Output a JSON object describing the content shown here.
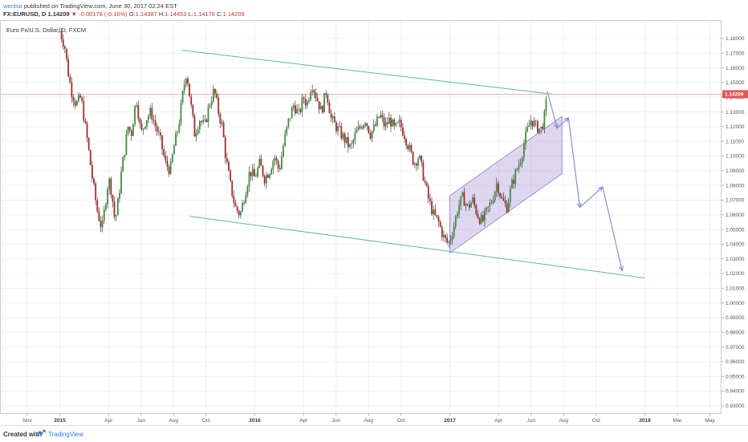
{
  "header": {
    "author": "wentso",
    "published_text": "published on TradingView.com, June 30, 2017 02:24 EST",
    "symbol": "FX:EURUSD, D",
    "last": "1.14209",
    "change": "-0.00178 (-0.16%)",
    "o_label": "O:",
    "o_value": "1.14387",
    "h_label": "H:",
    "h_value": "1.14453",
    "l_label": "L:",
    "l_value": "1.14176",
    "c_label": "C:",
    "c_value": "1.14209"
  },
  "footer": {
    "created_with": "Created with",
    "brand": "TradingView"
  },
  "chart_data": {
    "type": "candlestick",
    "title": "Euro Fx/U.S. Dollar, D, FXCM",
    "ylim": [
      0.925,
      1.192
    ],
    "y_ticks": [
      "1.18000",
      "1.17000",
      "1.16000",
      "1.15000",
      "1.14000",
      "1.13000",
      "1.12000",
      "1.11000",
      "1.10000",
      "1.09000",
      "1.08000",
      "1.07000",
      "1.06000",
      "1.05000",
      "1.04000",
      "1.03000",
      "1.02000",
      "1.01000",
      "1.00000",
      "0.99000",
      "0.98000",
      "0.97000",
      "0.96000",
      "0.95000",
      "0.94000",
      "0.93000"
    ],
    "current_price": "1.14209",
    "x_labels": [
      {
        "label": "Nov",
        "t": 0.0,
        "bold": false
      },
      {
        "label": "2015",
        "t": 2.0,
        "bold": true
      },
      {
        "label": "Apr",
        "t": 5.0,
        "bold": false
      },
      {
        "label": "Jun",
        "t": 7.0,
        "bold": false
      },
      {
        "label": "Aug",
        "t": 9.0,
        "bold": false
      },
      {
        "label": "Oct",
        "t": 11.0,
        "bold": false
      },
      {
        "label": "2016",
        "t": 14.0,
        "bold": true
      },
      {
        "label": "Apr",
        "t": 17.0,
        "bold": false
      },
      {
        "label": "Jun",
        "t": 19.0,
        "bold": false
      },
      {
        "label": "Aug",
        "t": 21.0,
        "bold": false
      },
      {
        "label": "Oct",
        "t": 23.0,
        "bold": false
      },
      {
        "label": "2017",
        "t": 26.0,
        "bold": true
      },
      {
        "label": "Apr",
        "t": 29.0,
        "bold": false
      },
      {
        "label": "Jun",
        "t": 31.0,
        "bold": false
      },
      {
        "label": "Aug",
        "t": 33.0,
        "bold": false
      },
      {
        "label": "Oct",
        "t": 35.0,
        "bold": false
      },
      {
        "label": "2018",
        "t": 38.0,
        "bold": true
      },
      {
        "label": "Mar",
        "t": 40.0,
        "bold": false
      },
      {
        "label": "May",
        "t": 42.0,
        "bold": false
      }
    ],
    "price_path": [
      [
        2.0,
        1.185
      ],
      [
        2.3,
        1.175
      ],
      [
        2.5,
        1.158
      ],
      [
        2.7,
        1.145
      ],
      [
        3.0,
        1.135
      ],
      [
        3.3,
        1.14
      ],
      [
        3.5,
        1.125
      ],
      [
        3.7,
        1.11
      ],
      [
        4.0,
        1.085
      ],
      [
        4.3,
        1.063
      ],
      [
        4.6,
        1.05
      ],
      [
        4.8,
        1.068
      ],
      [
        5.0,
        1.085
      ],
      [
        5.2,
        1.075
      ],
      [
        5.4,
        1.055
      ],
      [
        5.6,
        1.07
      ],
      [
        5.8,
        1.09
      ],
      [
        6.0,
        1.105
      ],
      [
        6.2,
        1.12
      ],
      [
        6.4,
        1.115
      ],
      [
        6.7,
        1.14
      ],
      [
        7.0,
        1.115
      ],
      [
        7.3,
        1.125
      ],
      [
        7.6,
        1.13
      ],
      [
        7.9,
        1.12
      ],
      [
        8.2,
        1.11
      ],
      [
        8.5,
        1.095
      ],
      [
        8.8,
        1.09
      ],
      [
        9.0,
        1.105
      ],
      [
        9.3,
        1.12
      ],
      [
        9.6,
        1.145
      ],
      [
        9.8,
        1.158
      ],
      [
        10.0,
        1.14
      ],
      [
        10.3,
        1.115
      ],
      [
        10.6,
        1.125
      ],
      [
        10.9,
        1.12
      ],
      [
        11.2,
        1.135
      ],
      [
        11.5,
        1.145
      ],
      [
        11.8,
        1.128
      ],
      [
        12.0,
        1.12
      ],
      [
        12.2,
        1.1
      ],
      [
        12.5,
        1.08
      ],
      [
        12.8,
        1.065
      ],
      [
        13.1,
        1.06
      ],
      [
        13.4,
        1.075
      ],
      [
        13.7,
        1.09
      ],
      [
        14.0,
        1.085
      ],
      [
        14.3,
        1.095
      ],
      [
        14.6,
        1.085
      ],
      [
        14.9,
        1.09
      ],
      [
        15.2,
        1.1
      ],
      [
        15.5,
        1.09
      ],
      [
        15.8,
        1.11
      ],
      [
        16.1,
        1.125
      ],
      [
        16.4,
        1.135
      ],
      [
        16.7,
        1.128
      ],
      [
        17.0,
        1.14
      ],
      [
        17.2,
        1.135
      ],
      [
        17.5,
        1.15
      ],
      [
        17.8,
        1.14
      ],
      [
        18.1,
        1.13
      ],
      [
        18.4,
        1.145
      ],
      [
        18.7,
        1.125
      ],
      [
        19.0,
        1.12
      ],
      [
        19.3,
        1.115
      ],
      [
        19.6,
        1.11
      ],
      [
        19.9,
        1.105
      ],
      [
        20.2,
        1.115
      ],
      [
        20.5,
        1.12
      ],
      [
        20.8,
        1.125
      ],
      [
        21.1,
        1.115
      ],
      [
        21.4,
        1.12
      ],
      [
        21.7,
        1.128
      ],
      [
        22.0,
        1.12
      ],
      [
        22.3,
        1.125
      ],
      [
        22.6,
        1.118
      ],
      [
        22.9,
        1.122
      ],
      [
        23.2,
        1.115
      ],
      [
        23.5,
        1.105
      ],
      [
        23.8,
        1.095
      ],
      [
        24.1,
        1.1
      ],
      [
        24.4,
        1.085
      ],
      [
        24.7,
        1.07
      ],
      [
        25.0,
        1.06
      ],
      [
        25.3,
        1.055
      ],
      [
        25.6,
        1.045
      ],
      [
        25.9,
        1.04
      ],
      [
        26.2,
        1.05
      ],
      [
        26.5,
        1.065
      ],
      [
        26.8,
        1.072
      ],
      [
        27.1,
        1.065
      ],
      [
        27.4,
        1.07
      ],
      [
        27.7,
        1.06
      ],
      [
        28.0,
        1.055
      ],
      [
        28.3,
        1.063
      ],
      [
        28.6,
        1.07
      ],
      [
        28.9,
        1.082
      ],
      [
        29.2,
        1.07
      ],
      [
        29.5,
        1.065
      ],
      [
        29.8,
        1.08
      ],
      [
        30.1,
        1.09
      ],
      [
        30.4,
        1.1
      ],
      [
        30.7,
        1.115
      ],
      [
        31.0,
        1.125
      ],
      [
        31.3,
        1.12
      ],
      [
        31.6,
        1.118
      ],
      [
        31.8,
        1.125
      ],
      [
        32.0,
        1.142
      ]
    ],
    "annotations": {
      "upper_channel": [
        [
          9.5,
          1.172
        ],
        [
          32.4,
          1.142
        ]
      ],
      "lower_channel": [
        [
          10.0,
          1.059
        ],
        [
          38.0,
          1.017
        ]
      ],
      "rising_channel_top": [
        [
          26.0,
          1.073
        ],
        [
          32.9,
          1.127
        ]
      ],
      "rising_channel_bottom": [
        [
          26.0,
          1.034
        ],
        [
          32.9,
          1.088
        ]
      ],
      "projection_arrows": [
        [
          [
            32.0,
            1.144
          ],
          [
            32.6,
            1.119
          ]
        ],
        [
          [
            32.6,
            1.119
          ],
          [
            33.3,
            1.126
          ]
        ],
        [
          [
            33.3,
            1.126
          ],
          [
            34.0,
            1.065
          ]
        ],
        [
          [
            34.0,
            1.065
          ],
          [
            35.4,
            1.079
          ]
        ],
        [
          [
            35.4,
            1.079
          ],
          [
            36.6,
            1.022
          ]
        ]
      ]
    }
  }
}
